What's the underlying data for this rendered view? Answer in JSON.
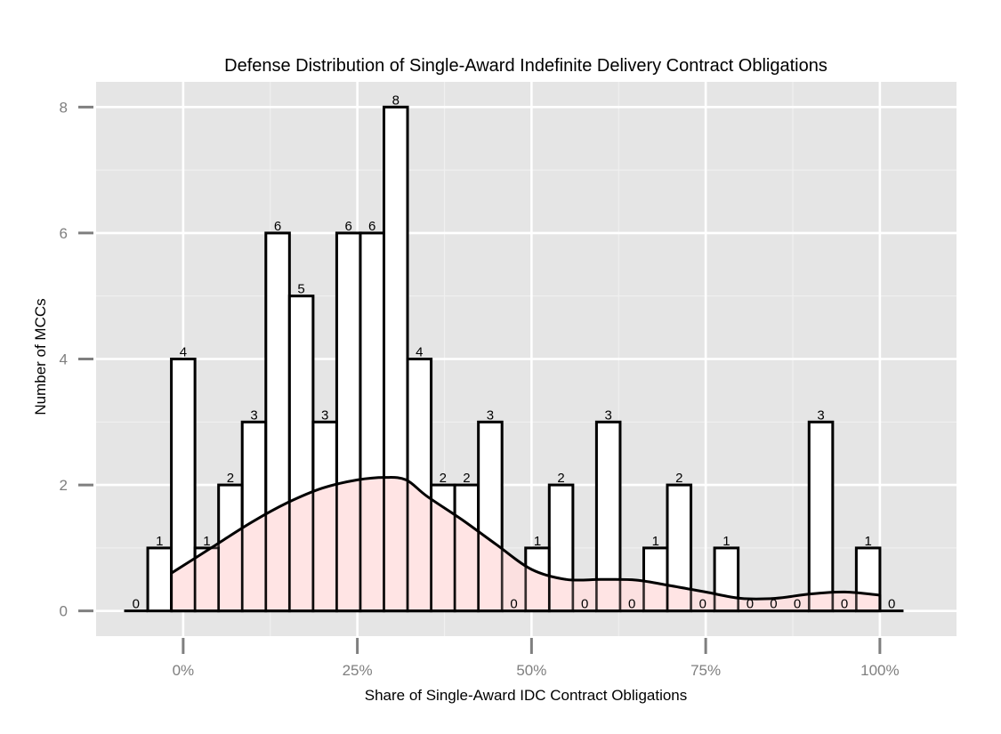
{
  "chart_data": {
    "type": "bar",
    "title": "Defense Distribution of Single-Award Indefinite Delivery Contract Obligations",
    "xlabel": "Share of Single-Award IDC Contract Obligations",
    "ylabel": "Number of MCCs",
    "xlim": [
      -0.125,
      1.11
    ],
    "ylim": [
      -0.4,
      8.4
    ],
    "x_ticks": [
      0,
      0.25,
      0.5,
      0.75,
      1.0
    ],
    "x_tick_labels": [
      "0%",
      "25%",
      "50%",
      "75%",
      "100%"
    ],
    "y_ticks": [
      0,
      2,
      4,
      6,
      8
    ],
    "y_tick_labels": [
      "0",
      "2",
      "4",
      "6",
      "8"
    ],
    "grid": true,
    "bin_width": 0.0339,
    "bins": [
      {
        "x": -0.0678,
        "count": 0
      },
      {
        "x": -0.0339,
        "count": 1
      },
      {
        "x": 0.0,
        "count": 4
      },
      {
        "x": 0.0339,
        "count": 1
      },
      {
        "x": 0.0678,
        "count": 2
      },
      {
        "x": 0.1017,
        "count": 3
      },
      {
        "x": 0.1356,
        "count": 6
      },
      {
        "x": 0.1695,
        "count": 5
      },
      {
        "x": 0.2034,
        "count": 3
      },
      {
        "x": 0.2373,
        "count": 6
      },
      {
        "x": 0.2712,
        "count": 6
      },
      {
        "x": 0.3051,
        "count": 8
      },
      {
        "x": 0.339,
        "count": 4
      },
      {
        "x": 0.3729,
        "count": 2
      },
      {
        "x": 0.4068,
        "count": 2
      },
      {
        "x": 0.4407,
        "count": 3
      },
      {
        "x": 0.4746,
        "count": 0
      },
      {
        "x": 0.5085,
        "count": 1
      },
      {
        "x": 0.5424,
        "count": 2
      },
      {
        "x": 0.5763,
        "count": 0
      },
      {
        "x": 0.6102,
        "count": 3
      },
      {
        "x": 0.6441,
        "count": 0
      },
      {
        "x": 0.678,
        "count": 1
      },
      {
        "x": 0.7119,
        "count": 2
      },
      {
        "x": 0.7458,
        "count": 0
      },
      {
        "x": 0.7797,
        "count": 1
      },
      {
        "x": 0.8136,
        "count": 0
      },
      {
        "x": 0.8475,
        "count": 0
      },
      {
        "x": 0.8814,
        "count": 0
      },
      {
        "x": 0.9153,
        "count": 3
      },
      {
        "x": 0.9492,
        "count": 0
      },
      {
        "x": 0.9831,
        "count": 1
      },
      {
        "x": 1.017,
        "count": 0
      }
    ],
    "density": {
      "x": [
        -0.017,
        0.04,
        0.1,
        0.15,
        0.2,
        0.25,
        0.29,
        0.32,
        0.35,
        0.4,
        0.45,
        0.5,
        0.55,
        0.6,
        0.65,
        0.7,
        0.75,
        0.8,
        0.85,
        0.9,
        0.95,
        1.0
      ],
      "y": [
        0.6,
        1.0,
        1.42,
        1.72,
        1.95,
        2.08,
        2.12,
        2.08,
        1.82,
        1.45,
        1.05,
        0.66,
        0.5,
        0.5,
        0.49,
        0.4,
        0.3,
        0.2,
        0.2,
        0.27,
        0.3,
        0.25
      ],
      "fill": "#ffdede",
      "stroke": "#000000"
    },
    "colors": {
      "panel": "#e5e5e5",
      "grid_major": "#ffffff",
      "grid_minor": "#f0f0f0",
      "bar_fill": "#ffffff",
      "bar_stroke": "#000000",
      "axis_text": "#7f7f7f"
    }
  }
}
